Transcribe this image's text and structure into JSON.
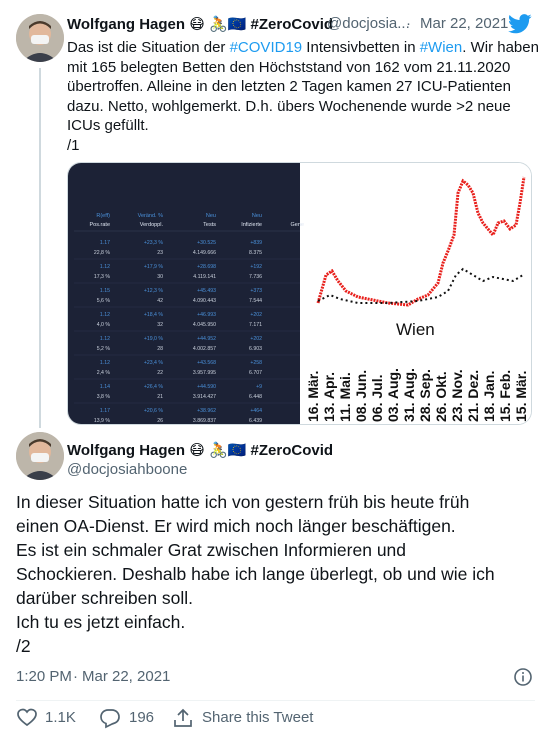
{
  "tweet1": {
    "name": "Wolfgang Hagen 😷 🚴🇪🇺 #ZeroCovid",
    "handle": "@docjosia...",
    "separator": "·",
    "date": "Mar 22, 2021",
    "lines": [
      [
        "Das ist die Situation der ",
        "#COVID19",
        " Intensivbetten in ",
        "#Wien",
        ". Wir haben"
      ],
      "mit 165 belegten Betten den Höchststand von 162 vom 21.11.2020",
      "übertroffen. Alleine in den letzten 2 Tagen kamen 27 ICU-Patienten",
      "dazu. Netto, wohlgemerkt. D.h. übers Wochenende wurde >2 neue",
      "ICUs gefüllt.",
      "/1"
    ],
    "image": {
      "table": {
        "headers": [
          [
            "R(eff)",
            "Pos.rate"
          ],
          [
            "Veränd. %",
            "Verdoppl."
          ],
          [
            "Neu",
            "Tests"
          ],
          [
            "Neu",
            "Infizierte"
          ],
          [
            "",
            "Gene"
          ]
        ],
        "rows": [
          [
            [
              "1.17",
              "22,8 %"
            ],
            [
              "+23,3 %",
              "23"
            ],
            [
              "+30.525",
              "4.149.666"
            ],
            [
              "+839",
              "8.375"
            ]
          ],
          [
            [
              "1.12",
              "17,3 %"
            ],
            [
              "+17,9 %",
              "30"
            ],
            [
              "+28.698",
              "4.119.141"
            ],
            [
              "+192",
              "7.736"
            ]
          ],
          [
            [
              "1.15",
              "5,6 %"
            ],
            [
              "+12,3 %",
              "42"
            ],
            [
              "+45.493",
              "4.090.443"
            ],
            [
              "+373",
              "7.544"
            ]
          ],
          [
            [
              "1.12",
              "4,0 %"
            ],
            [
              "+18,4 %",
              "32"
            ],
            [
              "+46.993",
              "4.045.950"
            ],
            [
              "+202",
              "7.171"
            ]
          ],
          [
            [
              "1.12",
              "5,2 %"
            ],
            [
              "+19,0 %",
              "28"
            ],
            [
              "+44.952",
              "4.002.857"
            ],
            [
              "+202",
              "6.903"
            ]
          ],
          [
            [
              "1.12",
              "2,4 %"
            ],
            [
              "+23,4 %",
              "22"
            ],
            [
              "+43.568",
              "3.957.995"
            ],
            [
              "+258",
              "6.707"
            ]
          ],
          [
            [
              "1.14",
              "3,8 %"
            ],
            [
              "+26,4 %",
              "21"
            ],
            [
              "+44.590",
              "3.914.427"
            ],
            [
              "+9",
              "6.448"
            ]
          ],
          [
            [
              "1.17",
              "13,9 %"
            ],
            [
              "+20,6 %",
              "26"
            ],
            [
              "+38.962",
              "3.869.837"
            ],
            [
              "+464",
              "6.439"
            ]
          ]
        ]
      },
      "chart": {
        "label": "Wien",
        "dates": [
          "16. Mär.",
          "13. Apr.",
          "11. Mai.",
          "08. Jun.",
          "06. Jul.",
          "03. Aug.",
          "31. Aug.",
          "28. Sep.",
          "26. Okt.",
          "23. Nov.",
          "21. Dez.",
          "18. Jan.",
          "15. Feb.",
          "15. Mär."
        ]
      }
    }
  },
  "tweet2": {
    "name": "Wolfgang Hagen 😷 🚴🇪🇺 #ZeroCovid",
    "handle": "@docjosiahboone",
    "lines": [
      "In dieser Situation hatte ich von gestern früh bis heute früh",
      "einen OA-Dienst. Er wird mich noch länger beschäftigen.",
      "Es ist ein schmaler Grat zwischen Informieren und",
      "Schockieren. Deshalb habe ich lange überlegt, ob und wie ich",
      "darüber schreiben soll.",
      "Ich tu es jetzt einfach.",
      "/2"
    ],
    "time": "1:20 PM",
    "separator": "·",
    "date": "Mar 22, 2021",
    "likes": "1.1K",
    "replies": "196",
    "share": "Share this Tweet"
  }
}
